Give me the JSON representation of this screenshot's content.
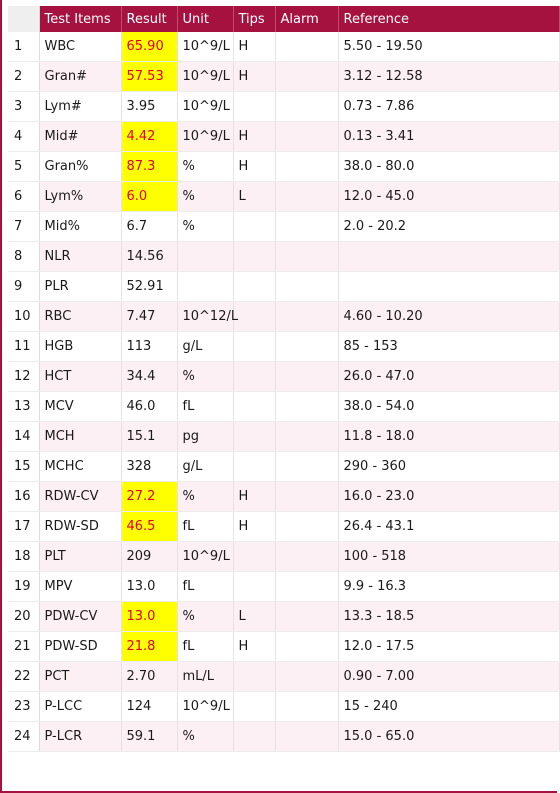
{
  "headers": [
    "",
    "Test Items",
    "Result",
    "Unit",
    "Tips",
    "Alarm",
    "Reference"
  ],
  "colors": {
    "header_bg": "#a6123f",
    "header_text": "#ffffff",
    "row_alt": "#fdf0f4",
    "flag_bg": "#ffff00",
    "flag_text": "#e0002a"
  },
  "rows": [
    {
      "idx": "1",
      "item": "WBC",
      "result": "65.90",
      "unit": "10^9/L",
      "tips": "H",
      "alarm": "",
      "reference": "5.50 - 19.50",
      "flagged": true
    },
    {
      "idx": "2",
      "item": "Gran#",
      "result": "57.53",
      "unit": "10^9/L",
      "tips": "H",
      "alarm": "",
      "reference": "3.12 - 12.58",
      "flagged": true
    },
    {
      "idx": "3",
      "item": "Lym#",
      "result": "3.95",
      "unit": "10^9/L",
      "tips": "",
      "alarm": "",
      "reference": "0.73 - 7.86",
      "flagged": false
    },
    {
      "idx": "4",
      "item": "Mid#",
      "result": "4.42",
      "unit": "10^9/L",
      "tips": "H",
      "alarm": "",
      "reference": "0.13 - 3.41",
      "flagged": true
    },
    {
      "idx": "5",
      "item": "Gran%",
      "result": "87.3",
      "unit": "%",
      "tips": "H",
      "alarm": "",
      "reference": "38.0 - 80.0",
      "flagged": true
    },
    {
      "idx": "6",
      "item": "Lym%",
      "result": "6.0",
      "unit": "%",
      "tips": "L",
      "alarm": "",
      "reference": "12.0 - 45.0",
      "flagged": true
    },
    {
      "idx": "7",
      "item": "Mid%",
      "result": "6.7",
      "unit": "%",
      "tips": "",
      "alarm": "",
      "reference": "2.0 - 20.2",
      "flagged": false
    },
    {
      "idx": "8",
      "item": "NLR",
      "result": "14.56",
      "unit": "",
      "tips": "",
      "alarm": "",
      "reference": "",
      "flagged": false
    },
    {
      "idx": "9",
      "item": "PLR",
      "result": "52.91",
      "unit": "",
      "tips": "",
      "alarm": "",
      "reference": "",
      "flagged": false
    },
    {
      "idx": "10",
      "item": "RBC",
      "result": "7.47",
      "unit": "10^12/L",
      "tips": "",
      "alarm": "",
      "reference": "4.60 - 10.20",
      "flagged": false
    },
    {
      "idx": "11",
      "item": "HGB",
      "result": "113",
      "unit": "g/L",
      "tips": "",
      "alarm": "",
      "reference": "85 - 153",
      "flagged": false
    },
    {
      "idx": "12",
      "item": "HCT",
      "result": "34.4",
      "unit": "%",
      "tips": "",
      "alarm": "",
      "reference": "26.0 - 47.0",
      "flagged": false
    },
    {
      "idx": "13",
      "item": "MCV",
      "result": "46.0",
      "unit": "fL",
      "tips": "",
      "alarm": "",
      "reference": "38.0 - 54.0",
      "flagged": false
    },
    {
      "idx": "14",
      "item": "MCH",
      "result": "15.1",
      "unit": "pg",
      "tips": "",
      "alarm": "",
      "reference": "11.8 - 18.0",
      "flagged": false
    },
    {
      "idx": "15",
      "item": "MCHC",
      "result": "328",
      "unit": "g/L",
      "tips": "",
      "alarm": "",
      "reference": "290 - 360",
      "flagged": false
    },
    {
      "idx": "16",
      "item": "RDW-CV",
      "result": "27.2",
      "unit": "%",
      "tips": "H",
      "alarm": "",
      "reference": "16.0 - 23.0",
      "flagged": true
    },
    {
      "idx": "17",
      "item": "RDW-SD",
      "result": "46.5",
      "unit": "fL",
      "tips": "H",
      "alarm": "",
      "reference": "26.4 - 43.1",
      "flagged": true
    },
    {
      "idx": "18",
      "item": "PLT",
      "result": "209",
      "unit": "10^9/L",
      "tips": "",
      "alarm": "",
      "reference": "100 - 518",
      "flagged": false
    },
    {
      "idx": "19",
      "item": "MPV",
      "result": "13.0",
      "unit": "fL",
      "tips": "",
      "alarm": "",
      "reference": "9.9 - 16.3",
      "flagged": false
    },
    {
      "idx": "20",
      "item": "PDW-CV",
      "result": "13.0",
      "unit": "%",
      "tips": "L",
      "alarm": "",
      "reference": "13.3 - 18.5",
      "flagged": true
    },
    {
      "idx": "21",
      "item": "PDW-SD",
      "result": "21.8",
      "unit": "fL",
      "tips": "H",
      "alarm": "",
      "reference": "12.0 - 17.5",
      "flagged": true
    },
    {
      "idx": "22",
      "item": "PCT",
      "result": "2.70",
      "unit": "mL/L",
      "tips": "",
      "alarm": "",
      "reference": "0.90 - 7.00",
      "flagged": false
    },
    {
      "idx": "23",
      "item": "P-LCC",
      "result": "124",
      "unit": "10^9/L",
      "tips": "",
      "alarm": "",
      "reference": "15 - 240",
      "flagged": false
    },
    {
      "idx": "24",
      "item": "P-LCR",
      "result": "59.1",
      "unit": "%",
      "tips": "",
      "alarm": "",
      "reference": "15.0 - 65.0",
      "flagged": false
    }
  ]
}
